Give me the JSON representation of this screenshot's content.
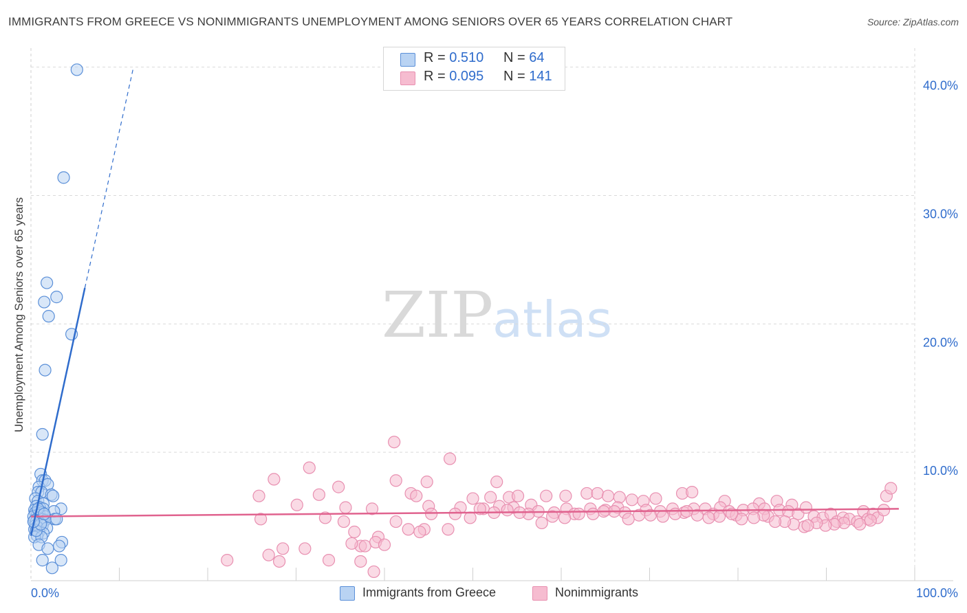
{
  "title": "IMMIGRANTS FROM GREECE VS NONIMMIGRANTS UNEMPLOYMENT AMONG SENIORS OVER 65 YEARS CORRELATION CHART",
  "source": "Source: ZipAtlas.com",
  "watermark": {
    "zip": "ZIP",
    "atlas": "atlas"
  },
  "colors": {
    "blue": "#2f6ccc",
    "blue_fill": "#b9d3f3",
    "pink": "#e0628e",
    "pink_fill": "#f6bcd0",
    "grid": "#d9d9d9"
  },
  "legend_top": [
    {
      "r_label": "R = ",
      "r_value": "0.510",
      "n_label": "N = ",
      "n_value": "64",
      "color": "blue"
    },
    {
      "r_label": "R = ",
      "r_value": "0.095",
      "n_label": "N = ",
      "n_value": "141",
      "color": "pink"
    }
  ],
  "legend_bottom": [
    "Immigrants from Greece",
    "Nonimmigrants"
  ],
  "chart_data": {
    "type": "scatter",
    "title": "IMMIGRANTS FROM GREECE VS NONIMMIGRANTS UNEMPLOYMENT AMONG SENIORS OVER 65 YEARS CORRELATION CHART",
    "xlabel": "",
    "ylabel": "Unemployment Among Seniors over 65 years",
    "xlim": [
      0,
      100
    ],
    "ylim": [
      0,
      41
    ],
    "x_tick_labels": [
      "0.0%",
      "100.0%"
    ],
    "y_ticks": [
      10,
      20,
      30,
      40
    ],
    "y_tick_labels": [
      "10.0%",
      "20.0%",
      "30.0%",
      "40.0%"
    ],
    "series": [
      {
        "name": "Immigrants from Greece",
        "color": "blue",
        "r": 0.51,
        "n": 64,
        "trend": {
          "x0": 0.0,
          "y0": 3.5,
          "x1": 6.1,
          "y1": 22.8,
          "dash_to_x": 11.6,
          "dash_to_y": 40.0
        },
        "points": [
          [
            5.2,
            39.8
          ],
          [
            3.7,
            31.4
          ],
          [
            1.8,
            23.2
          ],
          [
            2.9,
            22.1
          ],
          [
            1.5,
            21.7
          ],
          [
            2.0,
            20.6
          ],
          [
            4.6,
            19.2
          ],
          [
            1.6,
            16.4
          ],
          [
            1.3,
            11.4
          ],
          [
            1.1,
            8.3
          ],
          [
            1.3,
            7.8
          ],
          [
            1.6,
            7.8
          ],
          [
            0.9,
            7.3
          ],
          [
            1.9,
            7.5
          ],
          [
            0.8,
            6.9
          ],
          [
            1.2,
            6.9
          ],
          [
            2.3,
            6.7
          ],
          [
            2.5,
            6.6
          ],
          [
            0.5,
            6.4
          ],
          [
            0.8,
            6.2
          ],
          [
            1.4,
            6.0
          ],
          [
            0.6,
            5.8
          ],
          [
            1.0,
            5.7
          ],
          [
            1.4,
            5.6
          ],
          [
            3.4,
            5.6
          ],
          [
            0.4,
            5.5
          ],
          [
            0.9,
            5.4
          ],
          [
            0.5,
            5.3
          ],
          [
            1.3,
            5.3
          ],
          [
            2.6,
            5.4
          ],
          [
            0.7,
            5.1
          ],
          [
            1.0,
            5.1
          ],
          [
            0.3,
            5.0
          ],
          [
            1.6,
            5.0
          ],
          [
            0.8,
            4.9
          ],
          [
            1.2,
            4.8
          ],
          [
            2.7,
            4.8
          ],
          [
            0.4,
            4.7
          ],
          [
            1.6,
            4.7
          ],
          [
            2.9,
            4.8
          ],
          [
            0.6,
            4.6
          ],
          [
            1.0,
            4.5
          ],
          [
            0.5,
            4.3
          ],
          [
            1.3,
            4.3
          ],
          [
            0.7,
            4.2
          ],
          [
            1.8,
            4.1
          ],
          [
            0.4,
            4.0
          ],
          [
            0.9,
            3.8
          ],
          [
            1.4,
            3.7
          ],
          [
            0.7,
            3.5
          ],
          [
            0.4,
            3.4
          ],
          [
            1.2,
            3.4
          ],
          [
            3.5,
            3.0
          ],
          [
            0.9,
            2.8
          ],
          [
            3.2,
            2.7
          ],
          [
            1.9,
            2.5
          ],
          [
            1.3,
            1.6
          ],
          [
            3.4,
            1.6
          ],
          [
            2.4,
            1.0
          ],
          [
            0.6,
            3.9
          ],
          [
            1.1,
            4.4
          ],
          [
            0.8,
            5.6
          ],
          [
            1.5,
            5.2
          ],
          [
            0.3,
            4.6
          ]
        ]
      },
      {
        "name": "Nonimmigrants",
        "color": "pink",
        "r": 0.095,
        "n": 141,
        "trend": {
          "x0": 0.0,
          "y0": 5.0,
          "x1": 98.2,
          "y1": 5.6
        },
        "points": [
          [
            41.1,
            10.8
          ],
          [
            47.4,
            9.5
          ],
          [
            31.5,
            8.8
          ],
          [
            27.5,
            7.9
          ],
          [
            41.3,
            7.8
          ],
          [
            44.8,
            7.7
          ],
          [
            52.7,
            7.7
          ],
          [
            34.8,
            7.3
          ],
          [
            43.0,
            6.8
          ],
          [
            25.8,
            6.6
          ],
          [
            32.6,
            6.7
          ],
          [
            43.6,
            6.6
          ],
          [
            50.0,
            6.4
          ],
          [
            52.0,
            6.5
          ],
          [
            54.1,
            6.5
          ],
          [
            55.1,
            6.6
          ],
          [
            58.3,
            6.6
          ],
          [
            60.5,
            6.6
          ],
          [
            62.9,
            6.8
          ],
          [
            64.1,
            6.8
          ],
          [
            65.3,
            6.6
          ],
          [
            66.6,
            6.5
          ],
          [
            68.0,
            6.3
          ],
          [
            69.3,
            6.2
          ],
          [
            70.7,
            6.4
          ],
          [
            73.7,
            6.8
          ],
          [
            74.8,
            6.9
          ],
          [
            78.5,
            6.2
          ],
          [
            82.4,
            6.0
          ],
          [
            84.4,
            6.2
          ],
          [
            86.1,
            5.9
          ],
          [
            96.8,
            6.6
          ],
          [
            97.3,
            7.2
          ],
          [
            30.1,
            5.9
          ],
          [
            35.6,
            5.7
          ],
          [
            38.6,
            5.6
          ],
          [
            45.0,
            5.8
          ],
          [
            48.6,
            5.7
          ],
          [
            51.2,
            5.6
          ],
          [
            53.0,
            5.8
          ],
          [
            54.6,
            5.7
          ],
          [
            56.6,
            5.9
          ],
          [
            57.4,
            5.4
          ],
          [
            59.2,
            5.3
          ],
          [
            60.6,
            5.6
          ],
          [
            61.5,
            5.2
          ],
          [
            63.3,
            5.6
          ],
          [
            65.0,
            5.5
          ],
          [
            66.4,
            5.7
          ],
          [
            67.2,
            5.3
          ],
          [
            69.6,
            5.5
          ],
          [
            71.2,
            5.4
          ],
          [
            72.6,
            5.6
          ],
          [
            73.9,
            5.3
          ],
          [
            75.0,
            5.6
          ],
          [
            76.3,
            5.6
          ],
          [
            77.2,
            5.2
          ],
          [
            78.0,
            5.7
          ],
          [
            79.0,
            5.4
          ],
          [
            79.8,
            5.1
          ],
          [
            80.6,
            5.5
          ],
          [
            81.7,
            5.6
          ],
          [
            83.0,
            5.6
          ],
          [
            83.4,
            5.0
          ],
          [
            84.7,
            5.5
          ],
          [
            85.7,
            5.4
          ],
          [
            86.8,
            5.2
          ],
          [
            87.7,
            5.7
          ],
          [
            88.6,
            5.0
          ],
          [
            89.6,
            4.9
          ],
          [
            90.5,
            5.2
          ],
          [
            91.2,
            4.6
          ],
          [
            91.9,
            4.9
          ],
          [
            92.6,
            4.8
          ],
          [
            93.5,
            4.6
          ],
          [
            94.2,
            5.4
          ],
          [
            94.7,
            4.8
          ],
          [
            95.3,
            5.2
          ],
          [
            95.8,
            4.9
          ],
          [
            96.5,
            5.5
          ],
          [
            93.8,
            4.4
          ],
          [
            95.0,
            4.7
          ],
          [
            92.0,
            4.5
          ],
          [
            90.9,
            4.4
          ],
          [
            89.9,
            4.3
          ],
          [
            88.9,
            4.5
          ],
          [
            87.5,
            4.2
          ],
          [
            86.3,
            4.4
          ],
          [
            85.3,
            4.6
          ],
          [
            84.2,
            4.6
          ],
          [
            82.9,
            5.1
          ],
          [
            81.8,
            4.9
          ],
          [
            80.4,
            4.8
          ],
          [
            79.3,
            5.2
          ],
          [
            77.9,
            5.0
          ],
          [
            76.7,
            4.9
          ],
          [
            75.4,
            5.1
          ],
          [
            74.2,
            5.4
          ],
          [
            72.9,
            5.2
          ],
          [
            71.5,
            5.0
          ],
          [
            70.1,
            5.1
          ],
          [
            68.8,
            5.1
          ],
          [
            67.6,
            4.8
          ],
          [
            66.0,
            5.4
          ],
          [
            64.8,
            5.4
          ],
          [
            63.6,
            5.2
          ],
          [
            62.0,
            5.2
          ],
          [
            60.4,
            4.9
          ],
          [
            59.0,
            5.0
          ],
          [
            57.8,
            4.5
          ],
          [
            56.3,
            5.2
          ],
          [
            55.3,
            5.3
          ],
          [
            53.9,
            5.5
          ],
          [
            52.4,
            5.3
          ],
          [
            50.8,
            5.6
          ],
          [
            49.7,
            4.9
          ],
          [
            48.0,
            5.2
          ],
          [
            47.2,
            4.0
          ],
          [
            45.3,
            5.2
          ],
          [
            44.5,
            4.0
          ],
          [
            41.3,
            4.6
          ],
          [
            39.3,
            3.4
          ],
          [
            35.4,
            4.6
          ],
          [
            36.6,
            3.8
          ],
          [
            42.7,
            4.0
          ],
          [
            44.0,
            3.8
          ],
          [
            37.3,
            2.7
          ],
          [
            37.8,
            2.7
          ],
          [
            39.0,
            3.0
          ],
          [
            40.0,
            2.8
          ],
          [
            33.3,
            4.9
          ],
          [
            28.5,
            2.5
          ],
          [
            26.9,
            2.0
          ],
          [
            31.0,
            2.5
          ],
          [
            36.3,
            2.9
          ],
          [
            22.2,
            1.6
          ],
          [
            26.0,
            4.8
          ],
          [
            28.1,
            1.5
          ],
          [
            33.7,
            1.6
          ],
          [
            37.3,
            1.5
          ],
          [
            38.8,
            0.7
          ],
          [
            87.9,
            4.3
          ]
        ]
      }
    ]
  }
}
